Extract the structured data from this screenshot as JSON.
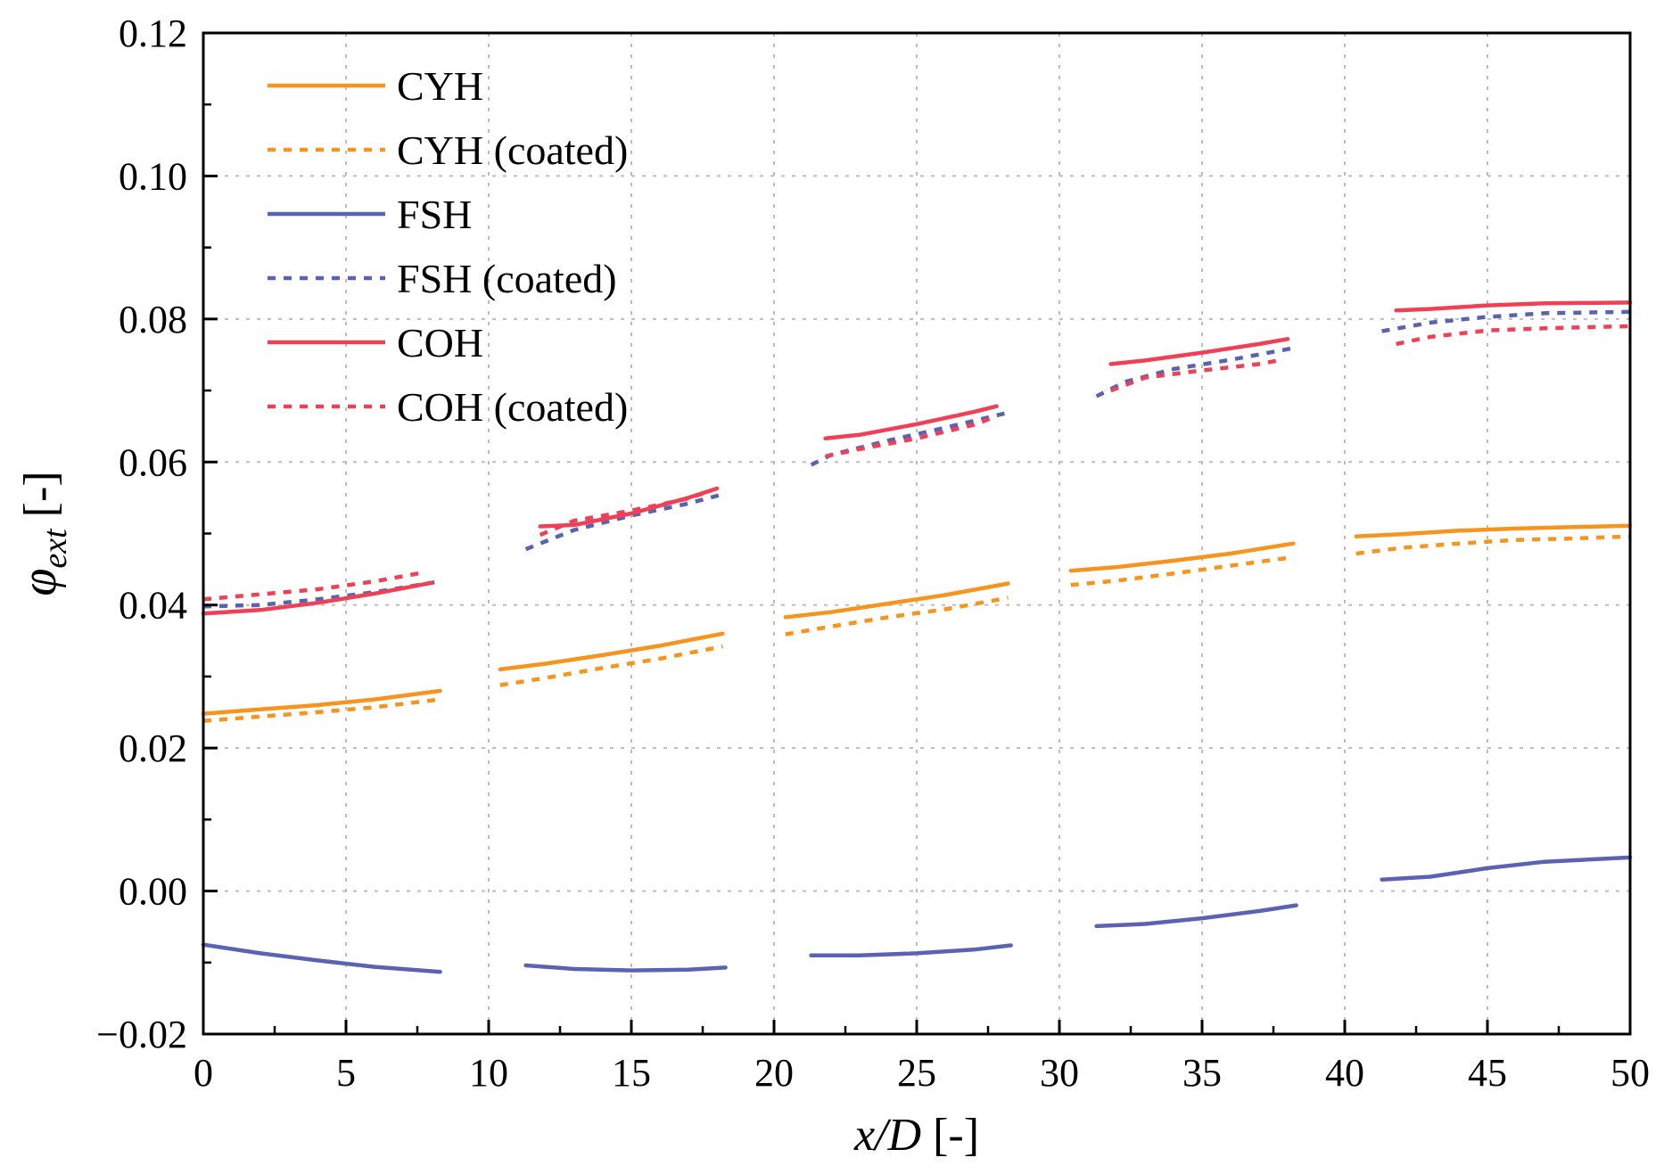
{
  "chart_data": {
    "type": "line",
    "title": "",
    "xlabel": "x/D [-]",
    "ylabel": "φ_ext [-]",
    "xlabel_parts": {
      "var": "x/D",
      "unit": " [-]"
    },
    "ylabel_parts": {
      "sym": "φ",
      "sub": "ext",
      "unit": " [-]"
    },
    "xlim": [
      0,
      50
    ],
    "ylim": [
      -0.02,
      0.12
    ],
    "xticks": [
      0,
      5,
      10,
      15,
      20,
      25,
      30,
      35,
      40,
      45,
      50
    ],
    "xtick_labels": [
      "0",
      "5",
      "10",
      "15",
      "20",
      "25",
      "30",
      "35",
      "40",
      "45",
      "50"
    ],
    "yticks": [
      -0.02,
      0.0,
      0.02,
      0.04,
      0.06,
      0.08,
      0.1,
      0.12
    ],
    "ytick_labels": [
      "−0.02",
      "0.00",
      "0.02",
      "0.04",
      "0.06",
      "0.08",
      "0.10",
      "0.12"
    ],
    "grid": true,
    "legend_position": "top-left",
    "series": [
      {
        "name": "CYH",
        "color": "#F7941D",
        "style": "solid",
        "segments": [
          [
            [
              0,
              0.0248
            ],
            [
              2,
              0.0254
            ],
            [
              4,
              0.026
            ],
            [
              6,
              0.0268
            ],
            [
              8.3,
              0.028
            ]
          ],
          [
            [
              10.4,
              0.031
            ],
            [
              12,
              0.0318
            ],
            [
              14,
              0.033
            ],
            [
              16,
              0.0343
            ],
            [
              18.2,
              0.036
            ]
          ],
          [
            [
              20.4,
              0.0383
            ],
            [
              22,
              0.039
            ],
            [
              24,
              0.0402
            ],
            [
              26,
              0.0414
            ],
            [
              28.2,
              0.043
            ]
          ],
          [
            [
              30.4,
              0.0448
            ],
            [
              32,
              0.0453
            ],
            [
              34,
              0.0462
            ],
            [
              36,
              0.0472
            ],
            [
              38.2,
              0.0486
            ]
          ],
          [
            [
              40.4,
              0.0496
            ],
            [
              42,
              0.0499
            ],
            [
              44,
              0.0504
            ],
            [
              46,
              0.0507
            ],
            [
              48,
              0.0509
            ],
            [
              50,
              0.0511
            ]
          ]
        ]
      },
      {
        "name": "CYH (coated)",
        "color": "#F7941D",
        "style": "dashed",
        "segments": [
          [
            [
              0,
              0.0238
            ],
            [
              2,
              0.0244
            ],
            [
              4,
              0.025
            ],
            [
              6,
              0.0257
            ],
            [
              8.3,
              0.0268
            ]
          ],
          [
            [
              10.4,
              0.0288
            ],
            [
              12,
              0.0298
            ],
            [
              14,
              0.0312
            ],
            [
              16,
              0.0325
            ],
            [
              18.2,
              0.0342
            ]
          ],
          [
            [
              20.4,
              0.0359
            ],
            [
              22,
              0.037
            ],
            [
              24,
              0.0383
            ],
            [
              26,
              0.0394
            ],
            [
              28.2,
              0.041
            ]
          ],
          [
            [
              30.4,
              0.0428
            ],
            [
              32,
              0.0434
            ],
            [
              34,
              0.0444
            ],
            [
              36,
              0.0455
            ],
            [
              38.2,
              0.0467
            ]
          ],
          [
            [
              40.4,
              0.0472
            ],
            [
              42,
              0.048
            ],
            [
              44,
              0.0486
            ],
            [
              46,
              0.0491
            ],
            [
              48,
              0.0493
            ],
            [
              50,
              0.0496
            ]
          ]
        ]
      },
      {
        "name": "FSH",
        "color": "#5B62B4",
        "style": "solid",
        "segments": [
          [
            [
              0,
              -0.0075
            ],
            [
              2,
              -0.0087
            ],
            [
              4,
              -0.0097
            ],
            [
              6,
              -0.0106
            ],
            [
              8.3,
              -0.0113
            ]
          ],
          [
            [
              11.3,
              -0.0104
            ],
            [
              13,
              -0.0109
            ],
            [
              15,
              -0.0111
            ],
            [
              17,
              -0.011
            ],
            [
              18.3,
              -0.0107
            ]
          ],
          [
            [
              21.3,
              -0.009
            ],
            [
              23,
              -0.009
            ],
            [
              25,
              -0.0087
            ],
            [
              27,
              -0.0082
            ],
            [
              28.3,
              -0.0076
            ]
          ],
          [
            [
              31.3,
              -0.0049
            ],
            [
              33,
              -0.0046
            ],
            [
              35,
              -0.0038
            ],
            [
              37,
              -0.0028
            ],
            [
              38.3,
              -0.002
            ]
          ],
          [
            [
              41.3,
              0.0016
            ],
            [
              43,
              0.002
            ],
            [
              45,
              0.0032
            ],
            [
              47,
              0.0041
            ],
            [
              50,
              0.0047
            ]
          ]
        ]
      },
      {
        "name": "FSH (coated)",
        "color": "#5B62B4",
        "style": "dashed",
        "segments": [
          [
            [
              0,
              0.0398
            ],
            [
              2,
              0.04
            ],
            [
              4,
              0.0408
            ],
            [
              6,
              0.0418
            ],
            [
              8.3,
              0.0433
            ]
          ],
          [
            [
              11.3,
              0.0478
            ],
            [
              13,
              0.0505
            ],
            [
              15,
              0.0525
            ],
            [
              17,
              0.0542
            ],
            [
              18.3,
              0.0556
            ]
          ],
          [
            [
              21.3,
              0.0596
            ],
            [
              22,
              0.061
            ],
            [
              24,
              0.063
            ],
            [
              26,
              0.0648
            ],
            [
              28.3,
              0.067
            ]
          ],
          [
            [
              31.3,
              0.0692
            ],
            [
              32.3,
              0.0712
            ],
            [
              34,
              0.073
            ],
            [
              36,
              0.0743
            ],
            [
              38.3,
              0.076
            ]
          ],
          [
            [
              41.3,
              0.0783
            ],
            [
              43,
              0.0795
            ],
            [
              45,
              0.0803
            ],
            [
              47,
              0.0808
            ],
            [
              50,
              0.081
            ]
          ]
        ]
      },
      {
        "name": "COH",
        "color": "#EF4056",
        "style": "solid",
        "segments": [
          [
            [
              0,
              0.0388
            ],
            [
              2,
              0.0393
            ],
            [
              4,
              0.0403
            ],
            [
              6,
              0.0416
            ],
            [
              8,
              0.0431
            ]
          ],
          [
            [
              11.8,
              0.051
            ],
            [
              13,
              0.0512
            ],
            [
              15,
              0.0528
            ],
            [
              17,
              0.055
            ],
            [
              18,
              0.0563
            ]
          ],
          [
            [
              21.8,
              0.0633
            ],
            [
              23,
              0.0638
            ],
            [
              25,
              0.0653
            ],
            [
              27,
              0.067
            ],
            [
              27.8,
              0.0678
            ]
          ],
          [
            [
              31.8,
              0.0737
            ],
            [
              33,
              0.0742
            ],
            [
              35,
              0.0753
            ],
            [
              37,
              0.0765
            ],
            [
              38,
              0.0772
            ]
          ],
          [
            [
              41.8,
              0.0812
            ],
            [
              43,
              0.0814
            ],
            [
              45,
              0.0819
            ],
            [
              47,
              0.0822
            ],
            [
              50,
              0.0823
            ]
          ]
        ]
      },
      {
        "name": "COH (coated)",
        "color": "#EF4056",
        "style": "dashed",
        "segments": [
          [
            [
              0,
              0.0408
            ],
            [
              2,
              0.0415
            ],
            [
              4,
              0.0422
            ],
            [
              6,
              0.0433
            ],
            [
              7.8,
              0.0446
            ]
          ],
          [
            [
              11.8,
              0.0498
            ],
            [
              13,
              0.0518
            ],
            [
              15,
              0.0532
            ],
            [
              17,
              0.0549
            ],
            [
              17.8,
              0.056
            ]
          ],
          [
            [
              21.8,
              0.0608
            ],
            [
              23,
              0.0618
            ],
            [
              25,
              0.0633
            ],
            [
              27,
              0.0652
            ],
            [
              27.8,
              0.0664
            ]
          ],
          [
            [
              31.8,
              0.07
            ],
            [
              33,
              0.0718
            ],
            [
              35,
              0.0728
            ],
            [
              37,
              0.0737
            ],
            [
              37.8,
              0.0743
            ]
          ],
          [
            [
              41.8,
              0.0765
            ],
            [
              43,
              0.0775
            ],
            [
              45,
              0.0784
            ],
            [
              47,
              0.0787
            ],
            [
              50,
              0.079
            ]
          ]
        ]
      }
    ]
  }
}
